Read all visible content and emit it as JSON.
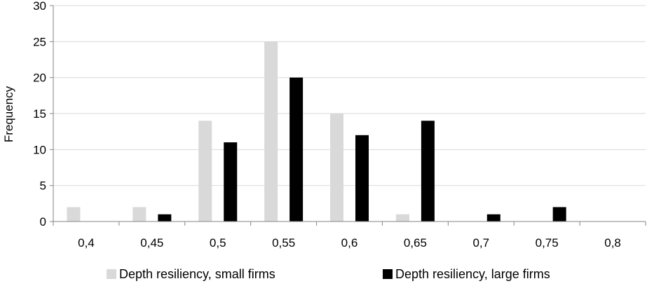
{
  "chart_data": {
    "type": "bar",
    "categories": [
      "0,4",
      "0,45",
      "0,5",
      "0,55",
      "0,6",
      "0,65",
      "0,7",
      "0,75",
      "0,8"
    ],
    "series": [
      {
        "name": "Depth resiliency, small firms",
        "color": "#d9d9d9",
        "values": [
          2,
          2,
          14,
          25,
          15,
          1,
          0,
          0,
          0
        ]
      },
      {
        "name": "Depth resiliency, large firms",
        "color": "#000000",
        "values": [
          0,
          1,
          11,
          20,
          12,
          14,
          1,
          2,
          0
        ]
      }
    ],
    "ylabel": "Frequency",
    "xlabel": "",
    "ylim": [
      0,
      30
    ],
    "yticks": [
      0,
      5,
      10,
      15,
      20,
      25,
      30
    ],
    "grid": true,
    "legend_position": "bottom"
  }
}
